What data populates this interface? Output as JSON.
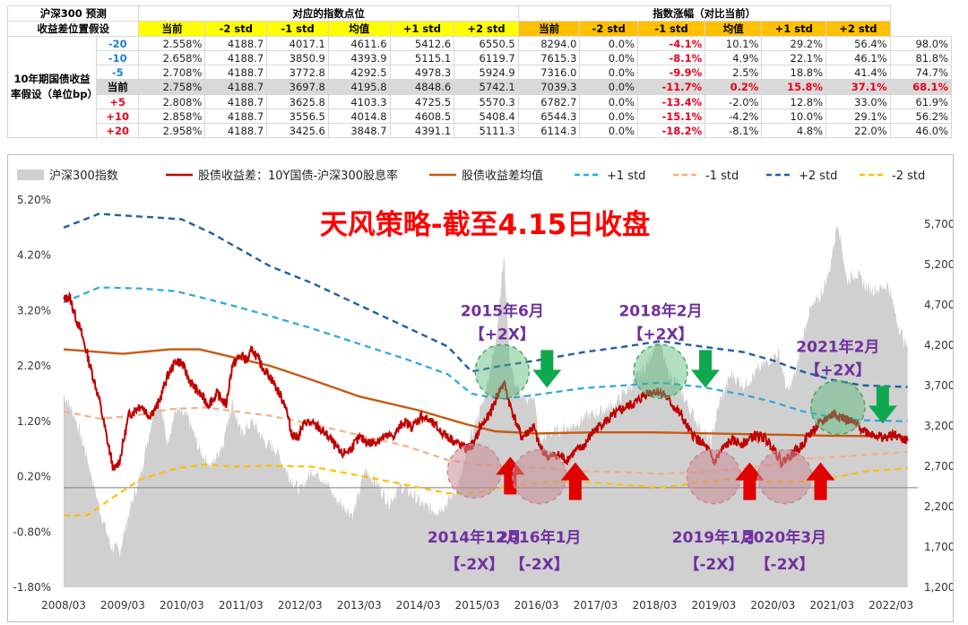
{
  "table": {
    "title_left_1": "沪深300 预测",
    "title_left_2": "收益差位置假设",
    "group1": "对应的指数点位",
    "group2": "指数涨幅（对比当前）",
    "row_header": "10年期国债收益率假设（单位bp）",
    "cols1": [
      "当前",
      "-2 std",
      "-1 std",
      "均值",
      "+1 std",
      "+2 std"
    ],
    "cols2": [
      "当前",
      "-2 std",
      "-1 std",
      "均值",
      "+1 std",
      "+2 std"
    ],
    "rows": [
      {
        "label": "-20",
        "yield": "2.558%",
        "pts": [
          "4188.7",
          "4017.1",
          "4611.6",
          "5412.6",
          "6550.5",
          "8294.0"
        ],
        "chg": [
          "0.0%",
          "-4.1%",
          "10.1%",
          "29.2%",
          "56.4%",
          "98.0%"
        ]
      },
      {
        "label": "-10",
        "yield": "2.658%",
        "pts": [
          "4188.7",
          "3850.9",
          "4393.9",
          "5115.1",
          "6119.7",
          "7615.3"
        ],
        "chg": [
          "0.0%",
          "-8.1%",
          "4.9%",
          "22.1%",
          "46.1%",
          "81.8%"
        ]
      },
      {
        "label": "-5",
        "yield": "2.708%",
        "pts": [
          "4188.7",
          "3772.8",
          "4292.5",
          "4978.3",
          "5924.9",
          "7316.0"
        ],
        "chg": [
          "0.0%",
          "-9.9%",
          "2.5%",
          "18.8%",
          "41.4%",
          "74.7%"
        ]
      },
      {
        "label": "当前",
        "yield": "2.758%",
        "pts": [
          "4188.7",
          "3697.8",
          "4195.8",
          "4848.6",
          "5742.1",
          "7039.3"
        ],
        "chg": [
          "0.0%",
          "-11.7%",
          "0.2%",
          "15.8%",
          "37.1%",
          "68.1%"
        ]
      },
      {
        "label": "+5",
        "yield": "2.808%",
        "pts": [
          "4188.7",
          "3625.8",
          "4103.3",
          "4725.5",
          "5570.3",
          "6782.7"
        ],
        "chg": [
          "0.0%",
          "-13.4%",
          "-2.0%",
          "12.8%",
          "33.0%",
          "61.9%"
        ]
      },
      {
        "label": "+10",
        "yield": "2.858%",
        "pts": [
          "4188.7",
          "3556.5",
          "4014.8",
          "4608.5",
          "5408.4",
          "6544.3"
        ],
        "chg": [
          "0.0%",
          "-15.1%",
          "-4.2%",
          "10.0%",
          "29.1%",
          "56.2%"
        ]
      },
      {
        "label": "+20",
        "yield": "2.958%",
        "pts": [
          "4188.7",
          "3425.6",
          "3848.7",
          "4391.1",
          "5111.3",
          "6114.3"
        ],
        "chg": [
          "0.0%",
          "-18.2%",
          "-8.1%",
          "4.8%",
          "22.0%",
          "46.0%"
        ]
      }
    ]
  },
  "chart_data": {
    "type": "line",
    "title": "天风策略-截至4.15日收盘",
    "legend": [
      "沪深300指数",
      "股债收益差：10Y国债-沪深300股息率",
      "股债收益差均值",
      "+1 std",
      "-1 std",
      "+2 std",
      "-2 std"
    ],
    "legend_position": "top",
    "x_ticks": [
      "2008/03",
      "2009/03",
      "2010/03",
      "2011/03",
      "2012/03",
      "2013/03",
      "2014/03",
      "2015/03",
      "2016/03",
      "2017/03",
      "2018/03",
      "2019/03",
      "2020/03",
      "2021/03",
      "2022/03"
    ],
    "x_range": [
      2008.0,
      2022.3
    ],
    "y_left": {
      "ticks": [
        "5.20%",
        "4.20%",
        "3.20%",
        "2.20%",
        "1.20%",
        "0.20%",
        "-0.80%",
        "-1.80%"
      ],
      "range": [
        -1.8,
        5.2
      ]
    },
    "y_right": {
      "ticks": [
        "5,700",
        "5,200",
        "4,700",
        "4,200",
        "3,700",
        "3,200",
        "2,700",
        "2,200",
        "1,700",
        "1,200"
      ],
      "range": [
        1200,
        6000
      ]
    },
    "index_series": [
      [
        2008.0,
        3600
      ],
      [
        2008.2,
        3300
      ],
      [
        2008.4,
        2800
      ],
      [
        2008.6,
        2200
      ],
      [
        2008.8,
        1700
      ],
      [
        2008.95,
        1650
      ],
      [
        2009.1,
        2100
      ],
      [
        2009.3,
        2600
      ],
      [
        2009.5,
        3300
      ],
      [
        2009.6,
        3600
      ],
      [
        2009.75,
        3000
      ],
      [
        2009.9,
        3400
      ],
      [
        2010.1,
        3300
      ],
      [
        2010.3,
        2900
      ],
      [
        2010.5,
        2700
      ],
      [
        2010.7,
        3000
      ],
      [
        2010.85,
        3500
      ],
      [
        2011.0,
        3100
      ],
      [
        2011.2,
        3250
      ],
      [
        2011.4,
        3000
      ],
      [
        2011.6,
        2900
      ],
      [
        2011.8,
        2600
      ],
      [
        2012.0,
        2400
      ],
      [
        2012.2,
        2650
      ],
      [
        2012.4,
        2550
      ],
      [
        2012.6,
        2300
      ],
      [
        2012.9,
        2100
      ],
      [
        2013.1,
        2650
      ],
      [
        2013.3,
        2500
      ],
      [
        2013.5,
        2250
      ],
      [
        2013.7,
        2450
      ],
      [
        2013.9,
        2350
      ],
      [
        2014.1,
        2200
      ],
      [
        2014.3,
        2150
      ],
      [
        2014.5,
        2250
      ],
      [
        2014.7,
        2500
      ],
      [
        2014.9,
        3100
      ],
      [
        2015.1,
        3500
      ],
      [
        2015.3,
        4200
      ],
      [
        2015.45,
        5300
      ],
      [
        2015.55,
        4000
      ],
      [
        2015.65,
        3700
      ],
      [
        2015.8,
        3500
      ],
      [
        2015.95,
        3600
      ],
      [
        2016.05,
        3000
      ],
      [
        2016.2,
        3100
      ],
      [
        2016.4,
        3150
      ],
      [
        2016.6,
        3200
      ],
      [
        2016.8,
        3300
      ],
      [
        2017.0,
        3350
      ],
      [
        2017.3,
        3450
      ],
      [
        2017.6,
        3700
      ],
      [
        2017.9,
        4000
      ],
      [
        2018.05,
        4350
      ],
      [
        2018.2,
        3900
      ],
      [
        2018.4,
        3700
      ],
      [
        2018.6,
        3400
      ],
      [
        2018.8,
        3150
      ],
      [
        2018.95,
        3000
      ],
      [
        2019.1,
        3500
      ],
      [
        2019.3,
        3850
      ],
      [
        2019.5,
        3700
      ],
      [
        2019.7,
        3850
      ],
      [
        2019.9,
        4000
      ],
      [
        2020.1,
        4100
      ],
      [
        2020.25,
        3600
      ],
      [
        2020.4,
        3900
      ],
      [
        2020.6,
        4600
      ],
      [
        2020.8,
        4800
      ],
      [
        2020.95,
        5100
      ],
      [
        2021.1,
        5750
      ],
      [
        2021.25,
        5000
      ],
      [
        2021.4,
        5100
      ],
      [
        2021.6,
        4900
      ],
      [
        2021.8,
        4900
      ],
      [
        2021.95,
        4950
      ],
      [
        2022.1,
        4500
      ],
      [
        2022.28,
        4150
      ]
    ],
    "spread_series": [
      [
        2008.0,
        3.4
      ],
      [
        2008.1,
        3.45
      ],
      [
        2008.2,
        3.1
      ],
      [
        2008.3,
        2.8
      ],
      [
        2008.45,
        2.2
      ],
      [
        2008.6,
        1.6
      ],
      [
        2008.75,
        0.8
      ],
      [
        2008.85,
        0.3
      ],
      [
        2008.95,
        0.5
      ],
      [
        2009.1,
        1.3
      ],
      [
        2009.3,
        1.5
      ],
      [
        2009.45,
        1.3
      ],
      [
        2009.6,
        1.5
      ],
      [
        2009.75,
        2.0
      ],
      [
        2009.9,
        2.3
      ],
      [
        2010.0,
        2.25
      ],
      [
        2010.15,
        1.9
      ],
      [
        2010.3,
        1.7
      ],
      [
        2010.45,
        1.5
      ],
      [
        2010.6,
        1.7
      ],
      [
        2010.75,
        1.5
      ],
      [
        2010.85,
        2.2
      ],
      [
        2011.0,
        2.4
      ],
      [
        2011.1,
        2.3
      ],
      [
        2011.2,
        2.5
      ],
      [
        2011.35,
        2.2
      ],
      [
        2011.5,
        2.0
      ],
      [
        2011.6,
        1.8
      ],
      [
        2011.75,
        1.5
      ],
      [
        2011.85,
        1.0
      ],
      [
        2011.95,
        0.9
      ],
      [
        2012.1,
        1.2
      ],
      [
        2012.3,
        1.1
      ],
      [
        2012.5,
        0.9
      ],
      [
        2012.7,
        0.6
      ],
      [
        2012.85,
        0.7
      ],
      [
        2013.0,
        0.9
      ],
      [
        2013.2,
        0.8
      ],
      [
        2013.4,
        0.9
      ],
      [
        2013.6,
        0.95
      ],
      [
        2013.75,
        1.2
      ],
      [
        2013.9,
        1.1
      ],
      [
        2014.05,
        1.3
      ],
      [
        2014.2,
        1.2
      ],
      [
        2014.4,
        1.0
      ],
      [
        2014.6,
        0.85
      ],
      [
        2014.8,
        0.7
      ],
      [
        2014.95,
        0.8
      ],
      [
        2015.05,
        1.1
      ],
      [
        2015.2,
        1.3
      ],
      [
        2015.35,
        1.7
      ],
      [
        2015.45,
        1.9
      ],
      [
        2015.55,
        1.5
      ],
      [
        2015.65,
        1.2
      ],
      [
        2015.75,
        0.9
      ],
      [
        2015.85,
        1.0
      ],
      [
        2015.95,
        1.1
      ],
      [
        2016.05,
        0.75
      ],
      [
        2016.2,
        0.55
      ],
      [
        2016.35,
        0.6
      ],
      [
        2016.5,
        0.5
      ],
      [
        2016.65,
        0.65
      ],
      [
        2016.8,
        0.75
      ],
      [
        2016.95,
        1.0
      ],
      [
        2017.1,
        1.15
      ],
      [
        2017.3,
        1.3
      ],
      [
        2017.5,
        1.45
      ],
      [
        2017.7,
        1.55
      ],
      [
        2017.85,
        1.7
      ],
      [
        2018.0,
        1.75
      ],
      [
        2018.15,
        1.7
      ],
      [
        2018.3,
        1.5
      ],
      [
        2018.45,
        1.3
      ],
      [
        2018.6,
        1.0
      ],
      [
        2018.75,
        0.85
      ],
      [
        2018.9,
        0.7
      ],
      [
        2019.0,
        0.45
      ],
      [
        2019.15,
        0.7
      ],
      [
        2019.3,
        0.85
      ],
      [
        2019.5,
        0.8
      ],
      [
        2019.7,
        0.95
      ],
      [
        2019.85,
        0.9
      ],
      [
        2020.0,
        0.75
      ],
      [
        2020.15,
        0.45
      ],
      [
        2020.3,
        0.6
      ],
      [
        2020.45,
        0.7
      ],
      [
        2020.6,
        0.95
      ],
      [
        2020.75,
        1.1
      ],
      [
        2020.9,
        1.25
      ],
      [
        2021.05,
        1.35
      ],
      [
        2021.2,
        1.25
      ],
      [
        2021.4,
        1.15
      ],
      [
        2021.6,
        1.0
      ],
      [
        2021.75,
        0.95
      ],
      [
        2021.9,
        0.9
      ],
      [
        2022.05,
        0.95
      ],
      [
        2022.2,
        0.88
      ],
      [
        2022.28,
        0.85
      ]
    ],
    "mean_series": [
      [
        2008.0,
        2.5
      ],
      [
        2009.0,
        2.42
      ],
      [
        2009.8,
        2.5
      ],
      [
        2010.3,
        2.5
      ],
      [
        2010.9,
        2.35
      ],
      [
        2011.5,
        2.2
      ],
      [
        2012.2,
        1.95
      ],
      [
        2013.0,
        1.65
      ],
      [
        2014.0,
        1.4
      ],
      [
        2014.8,
        1.15
      ],
      [
        2015.3,
        1.02
      ],
      [
        2016.0,
        0.98
      ],
      [
        2017.0,
        1.0
      ],
      [
        2018.0,
        1.0
      ],
      [
        2019.0,
        0.98
      ],
      [
        2020.0,
        0.96
      ],
      [
        2021.0,
        0.94
      ],
      [
        2022.0,
        0.93
      ],
      [
        2022.28,
        0.92
      ]
    ],
    "plus1_series": [
      [
        2008.0,
        3.35
      ],
      [
        2008.6,
        3.62
      ],
      [
        2009.3,
        3.6
      ],
      [
        2009.9,
        3.55
      ],
      [
        2010.4,
        3.42
      ],
      [
        2010.9,
        3.28
      ],
      [
        2011.5,
        3.1
      ],
      [
        2012.2,
        2.88
      ],
      [
        2013.0,
        2.6
      ],
      [
        2013.8,
        2.32
      ],
      [
        2014.5,
        2.05
      ],
      [
        2014.9,
        1.7
      ],
      [
        2015.4,
        1.6
      ],
      [
        2016.0,
        1.68
      ],
      [
        2016.8,
        1.8
      ],
      [
        2017.5,
        1.85
      ],
      [
        2018.1,
        1.9
      ],
      [
        2018.8,
        1.82
      ],
      [
        2019.5,
        1.68
      ],
      [
        2020.0,
        1.55
      ],
      [
        2020.5,
        1.38
      ],
      [
        2021.0,
        1.28
      ],
      [
        2021.5,
        1.22
      ],
      [
        2022.28,
        1.2
      ]
    ],
    "minus1_series": [
      [
        2008.0,
        1.38
      ],
      [
        2008.6,
        1.25
      ],
      [
        2009.2,
        1.3
      ],
      [
        2009.8,
        1.42
      ],
      [
        2010.4,
        1.45
      ],
      [
        2010.9,
        1.38
      ],
      [
        2011.5,
        1.3
      ],
      [
        2012.2,
        1.15
      ],
      [
        2013.0,
        0.95
      ],
      [
        2013.8,
        0.75
      ],
      [
        2014.5,
        0.5
      ],
      [
        2015.0,
        0.42
      ],
      [
        2015.6,
        0.38
      ],
      [
        2016.2,
        0.35
      ],
      [
        2016.8,
        0.3
      ],
      [
        2017.5,
        0.28
      ],
      [
        2018.1,
        0.25
      ],
      [
        2018.8,
        0.28
      ],
      [
        2019.5,
        0.35
      ],
      [
        2020.0,
        0.42
      ],
      [
        2020.5,
        0.52
      ],
      [
        2021.0,
        0.55
      ],
      [
        2021.6,
        0.6
      ],
      [
        2022.28,
        0.65
      ]
    ],
    "plus2_series": [
      [
        2008.0,
        4.7
      ],
      [
        2008.6,
        4.95
      ],
      [
        2009.0,
        4.92
      ],
      [
        2009.6,
        4.88
      ],
      [
        2010.0,
        4.85
      ],
      [
        2010.5,
        4.6
      ],
      [
        2011.0,
        4.3
      ],
      [
        2011.5,
        4.0
      ],
      [
        2012.2,
        3.7
      ],
      [
        2013.0,
        3.3
      ],
      [
        2013.8,
        2.9
      ],
      [
        2014.5,
        2.55
      ],
      [
        2014.9,
        2.1
      ],
      [
        2015.4,
        2.2
      ],
      [
        2016.0,
        2.3
      ],
      [
        2016.8,
        2.45
      ],
      [
        2017.5,
        2.55
      ],
      [
        2018.1,
        2.65
      ],
      [
        2018.8,
        2.55
      ],
      [
        2019.5,
        2.45
      ],
      [
        2020.0,
        2.3
      ],
      [
        2020.5,
        2.1
      ],
      [
        2021.0,
        1.95
      ],
      [
        2021.5,
        1.85
      ],
      [
        2022.28,
        1.82
      ]
    ],
    "minus2_series": [
      [
        2008.0,
        -0.5
      ],
      [
        2008.4,
        -0.5
      ],
      [
        2008.8,
        -0.2
      ],
      [
        2009.3,
        0.15
      ],
      [
        2009.9,
        0.35
      ],
      [
        2010.4,
        0.42
      ],
      [
        2010.9,
        0.38
      ],
      [
        2011.5,
        0.4
      ],
      [
        2012.2,
        0.38
      ],
      [
        2013.0,
        0.22
      ],
      [
        2013.8,
        0.05
      ],
      [
        2014.5,
        -0.1
      ],
      [
        2015.0,
        -0.1
      ],
      [
        2015.6,
        0.05
      ],
      [
        2016.2,
        0.1
      ],
      [
        2016.8,
        0.1
      ],
      [
        2017.5,
        0.05
      ],
      [
        2018.1,
        0.0
      ],
      [
        2018.8,
        0.1
      ],
      [
        2019.5,
        0.18
      ],
      [
        2020.0,
        0.1
      ],
      [
        2020.5,
        0.12
      ],
      [
        2021.0,
        0.18
      ],
      [
        2021.6,
        0.3
      ],
      [
        2022.28,
        0.35
      ]
    ],
    "annotations": [
      {
        "date": "2015年6月",
        "tag": "【+2X】",
        "x": 2015.42,
        "y": 2.1,
        "kind": "green"
      },
      {
        "date": "2018年2月",
        "tag": "【+2X】",
        "x": 2018.1,
        "y": 2.1,
        "kind": "green"
      },
      {
        "date": "2021年2月",
        "tag": "【+2X】",
        "x": 2021.1,
        "y": 1.45,
        "kind": "green"
      },
      {
        "date": "2014年12月",
        "tag": "【-2X】",
        "x": 2014.95,
        "y": 0.3,
        "kind": "red"
      },
      {
        "date": "2016年1月",
        "tag": "【-2X】",
        "x": 2016.05,
        "y": 0.2,
        "kind": "red"
      },
      {
        "date": "2019年1月",
        "tag": "【-2X】",
        "x": 2019.0,
        "y": 0.2,
        "kind": "red"
      },
      {
        "date": "2020年3月",
        "tag": "【-2X】",
        "x": 2020.2,
        "y": 0.2,
        "kind": "red"
      }
    ],
    "colors": {
      "index": "#d0d0d0",
      "spread": "#c00000",
      "mean": "#c55a11",
      "plus1": "#29a8e0",
      "minus1": "#f4b183",
      "plus2": "#1f5fa8",
      "minus2": "#ffc000",
      "title": "#ff0000",
      "label": "#7030a0"
    }
  }
}
